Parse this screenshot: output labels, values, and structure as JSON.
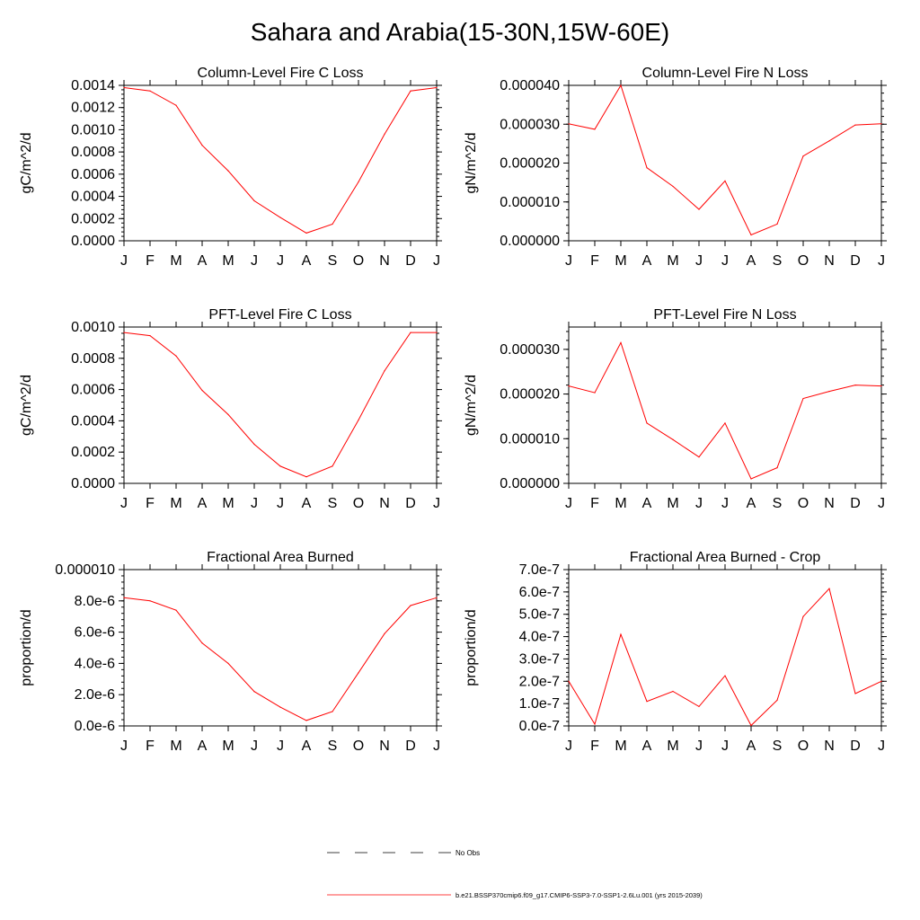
{
  "page_title": "Sahara and Arabia(15-30N,15W-60E)",
  "colors": {
    "model": "#ff0000",
    "obs": "#000000",
    "axis": "#000000"
  },
  "legend": {
    "obs_label": "No Obs",
    "model_label": "b.e21.BSSP370cmip6.f09_g17.CMIP6-SSP3-7.0-SSP1-2.6Lu.001 (yrs 2015-2039)"
  },
  "chart_data": [
    {
      "type": "line",
      "title": "Column-Level Fire C Loss",
      "ylabel": "gC/m^2/d",
      "categories": [
        "J",
        "F",
        "M",
        "A",
        "M",
        "J",
        "J",
        "A",
        "S",
        "O",
        "N",
        "D",
        "J"
      ],
      "ylim": [
        0,
        0.0014
      ],
      "yticks": [
        0,
        0.0002,
        0.0004,
        0.0006,
        0.0008,
        0.001,
        0.0012,
        0.0014
      ],
      "ytick_labels": [
        "0.0000",
        "0.0002",
        "0.0004",
        "0.0006",
        "0.0008",
        "0.0010",
        "0.0012",
        "0.0014"
      ],
      "values": [
        0.00138,
        0.00135,
        0.00122,
        0.00086,
        0.00063,
        0.00036,
        0.00021,
        7e-05,
        0.00015,
        0.00053,
        0.00096,
        0.00135,
        0.00138
      ]
    },
    {
      "type": "line",
      "title": "Column-Level Fire N Loss",
      "ylabel": "gN/m^2/d",
      "categories": [
        "J",
        "F",
        "M",
        "A",
        "M",
        "J",
        "J",
        "A",
        "S",
        "O",
        "N",
        "D",
        "J"
      ],
      "ylim": [
        0,
        4e-05
      ],
      "yticks": [
        0,
        1e-05,
        2e-05,
        3e-05,
        4e-05
      ],
      "ytick_labels": [
        "0.000000",
        "0.000010",
        "0.000020",
        "0.000030",
        "0.000040"
      ],
      "values": [
        3.01e-05,
        2.87e-05,
        4e-05,
        1.88e-05,
        1.4e-05,
        8.1e-06,
        1.54e-05,
        1.5e-06,
        4.3e-06,
        2.18e-05,
        2.57e-05,
        2.98e-05,
        3.01e-05
      ]
    },
    {
      "type": "line",
      "title": "PFT-Level Fire C Loss",
      "ylabel": "gC/m^2/d",
      "categories": [
        "J",
        "F",
        "M",
        "A",
        "M",
        "J",
        "J",
        "A",
        "S",
        "O",
        "N",
        "D",
        "J"
      ],
      "ylim": [
        0,
        0.001
      ],
      "yticks": [
        0,
        0.0002,
        0.0004,
        0.0006,
        0.0008,
        0.001
      ],
      "ytick_labels": [
        "0.0000",
        "0.0002",
        "0.0004",
        "0.0006",
        "0.0008",
        "0.0010"
      ],
      "values": [
        0.000965,
        0.000945,
        0.000815,
        0.000595,
        0.00044,
        0.00025,
        0.00011,
        4.2e-05,
        0.00011,
        0.000405,
        0.00072,
        0.000965,
        0.000965
      ]
    },
    {
      "type": "line",
      "title": "PFT-Level Fire N Loss",
      "ylabel": "gN/m^2/d",
      "categories": [
        "J",
        "F",
        "M",
        "A",
        "M",
        "J",
        "J",
        "A",
        "S",
        "O",
        "N",
        "D",
        "J"
      ],
      "ylim": [
        0,
        3.5e-05
      ],
      "yticks": [
        0,
        1e-05,
        2e-05,
        3e-05
      ],
      "ytick_labels": [
        "0.000000",
        "0.000010",
        "0.000020",
        "0.000030"
      ],
      "values": [
        2.18e-05,
        2.03e-05,
        3.15e-05,
        1.35e-05,
        9.8e-06,
        5.9e-06,
        1.35e-05,
        1e-06,
        3.5e-06,
        1.9e-05,
        2.06e-05,
        2.2e-05,
        2.18e-05
      ]
    },
    {
      "type": "line",
      "title": "Fractional Area Burned",
      "ylabel": "proportion/d",
      "categories": [
        "J",
        "F",
        "M",
        "A",
        "M",
        "J",
        "J",
        "A",
        "S",
        "O",
        "N",
        "D",
        "J"
      ],
      "ylim": [
        0,
        1e-05
      ],
      "yticks": [
        0,
        2e-06,
        4e-06,
        6e-06,
        8e-06,
        1e-05
      ],
      "ytick_labels": [
        "0.0e-6",
        "2.0e-6",
        "4.0e-6",
        "6.0e-6",
        "8.0e-6",
        "0.000010"
      ],
      "values": [
        8.2e-06,
        8e-06,
        7.4e-06,
        5.3e-06,
        4e-06,
        2.2e-06,
        1.2e-06,
        3.5e-07,
        9.2e-07,
        3.4e-06,
        5.9e-06,
        7.7e-06,
        8.2e-06
      ]
    },
    {
      "type": "line",
      "title": "Fractional Area Burned - Crop",
      "ylabel": "proportion/d",
      "categories": [
        "J",
        "F",
        "M",
        "A",
        "M",
        "J",
        "J",
        "A",
        "S",
        "O",
        "N",
        "D",
        "J"
      ],
      "ylim": [
        0,
        7e-07
      ],
      "yticks": [
        0,
        1e-07,
        2e-07,
        3e-07,
        4e-07,
        5e-07,
        6e-07,
        7e-07
      ],
      "ytick_labels": [
        "0.0e-7",
        "1.0e-7",
        "2.0e-7",
        "3.0e-7",
        "4.0e-7",
        "5.0e-7",
        "6.0e-7",
        "7.0e-7"
      ],
      "values": [
        2e-07,
        8e-09,
        4.1e-07,
        1.1e-07,
        1.55e-07,
        8.7e-08,
        2.25e-07,
        2e-09,
        1.15e-07,
        4.9e-07,
        6.15e-07,
        1.45e-07,
        2e-07
      ]
    }
  ]
}
